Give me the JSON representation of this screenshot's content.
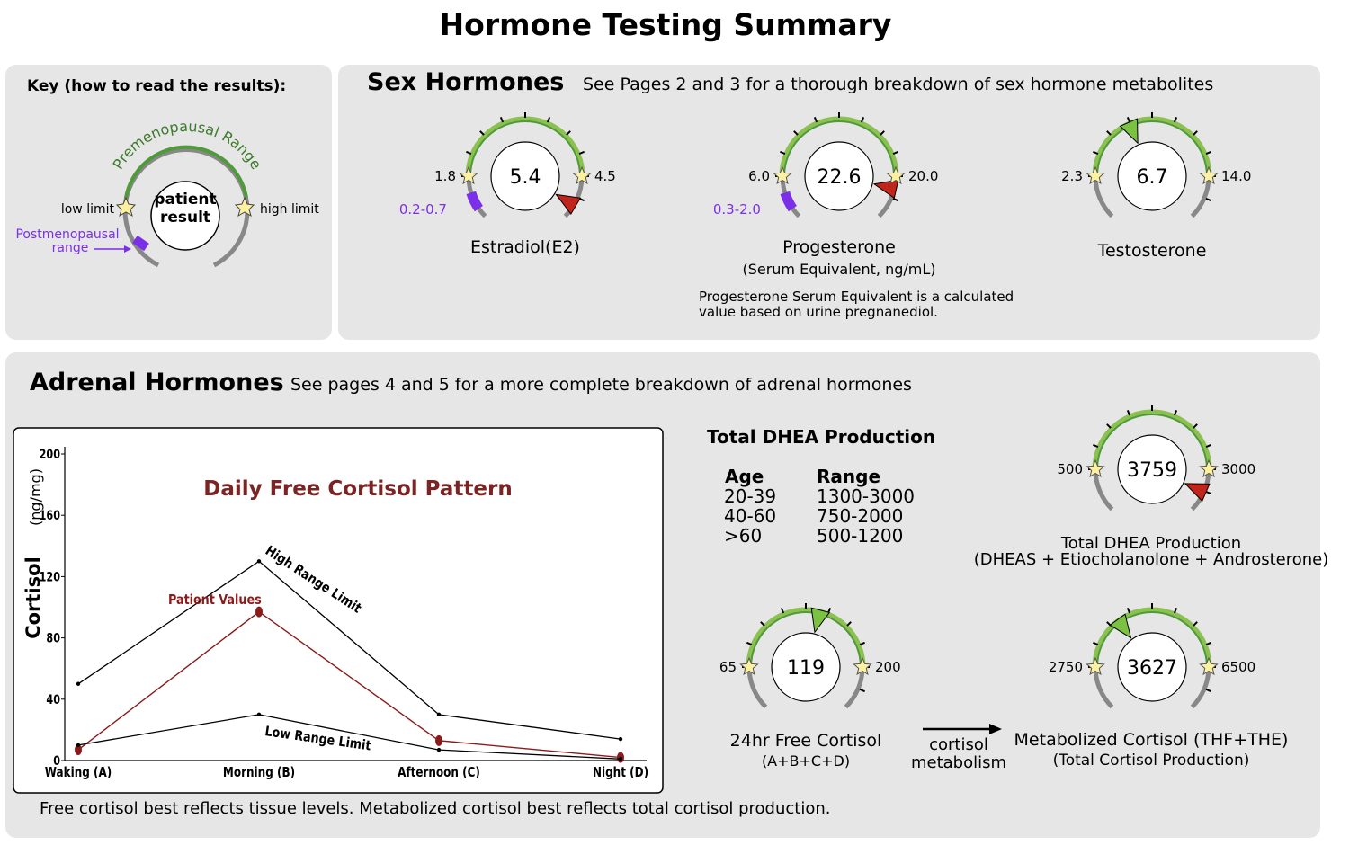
{
  "title": "Hormone Testing Summary",
  "colors": {
    "panel_bg": "#e6e6e6",
    "range_green": "#4f9a3a",
    "range_light_green": "#8cc152",
    "gauge_gray": "#888888",
    "postmeno_purple": "#7b2fe8",
    "marker_red": "#c0241a",
    "marker_green": "#7cc242",
    "patient_line": "#8b1a1a",
    "cortisol_title": "#7a2424"
  },
  "key": {
    "heading": "Key (how to read the results):",
    "arc_label": "Premenopausal Range",
    "low_limit": "low limit",
    "high_limit": "high limit",
    "patient_line1": "patient",
    "patient_line2": "result",
    "postmeno_line1": "Postmenopausal",
    "postmeno_line2": "range"
  },
  "sex": {
    "title": "Sex Hormones",
    "subtitle": "See Pages 2 and 3 for a thorough breakdown of sex hormone metabolites",
    "note_line1": "Progesterone Serum Equivalent is a calculated",
    "note_line2": "value based on urine pregnanediol.",
    "gauges": [
      {
        "name": "Estradiol(E2)",
        "value": "5.4",
        "low": "1.8",
        "high": "4.5",
        "postmeno": "0.2-0.7",
        "marker": "red",
        "marker_frac": 1.17
      },
      {
        "name": "Progesterone",
        "sub": "(Serum Equivalent, ng/mL)",
        "value": "22.6",
        "low": "6.0",
        "high": "20.0",
        "postmeno": "0.3-2.0",
        "marker": "red",
        "marker_frac": 1.07
      },
      {
        "name": "Testosterone",
        "value": "6.7",
        "low": "2.3",
        "high": "14.0",
        "marker": "green",
        "marker_frac": 0.37
      }
    ]
  },
  "adrenal": {
    "title": "Adrenal Hormones",
    "subtitle": "See pages 4 and 5 for a more complete breakdown of adrenal hormones",
    "footer": "Free cortisol best reflects tissue levels. Metabolized cortisol best reflects total cortisol production.",
    "dhea_heading": "Total DHEA Production",
    "age_header": "Age",
    "range_header": "Range",
    "age_rows": [
      {
        "age": "20-39",
        "range": "1300-3000"
      },
      {
        "age": "40-60",
        "range": "750-2000"
      },
      {
        "age": ">60",
        "range": "500-1200"
      }
    ],
    "dhea_gauge": {
      "value": "3759",
      "low": "500",
      "high": "3000",
      "label1": "Total DHEA Production",
      "label2": "(DHEAS + Etiocholanolone + Androsterone)",
      "marker": "red",
      "marker_frac": 1.13
    },
    "free_gauge": {
      "value": "119",
      "low": "65",
      "high": "200",
      "label1": "24hr Free Cortisol",
      "label2": "(A+B+C+D)",
      "marker": "green",
      "marker_frac": 0.58
    },
    "metab_gauge": {
      "value": "3627",
      "low": "2750",
      "high": "6500",
      "label1": "Metabolized Cortisol (THF+THE)",
      "label2": "(Total Cortisol Production)",
      "marker": "green",
      "marker_frac": 0.3
    },
    "arrow_line1": "cortisol",
    "arrow_line2": "metabolism"
  },
  "chart_data": {
    "type": "line",
    "title": "Daily Free Cortisol Pattern",
    "ylabel_main": "Cortisol",
    "ylabel_unit": "(ng/mg)",
    "categories": [
      "Waking (A)",
      "Morning (B)",
      "Afternoon (C)",
      "Night (D)"
    ],
    "ylim": [
      0,
      200
    ],
    "yticks": [
      0,
      40,
      80,
      120,
      160,
      200
    ],
    "series": [
      {
        "name": "High Range Limit",
        "values": [
          50,
          130,
          30,
          14
        ]
      },
      {
        "name": "Patient Values",
        "values": [
          7,
          97,
          13,
          2
        ]
      },
      {
        "name": "Low Range Limit",
        "values": [
          10,
          30,
          7,
          1
        ]
      }
    ],
    "annotations": {
      "high": "High Range Limit",
      "low": "Low Range Limit",
      "patient": "Patient Values"
    }
  }
}
